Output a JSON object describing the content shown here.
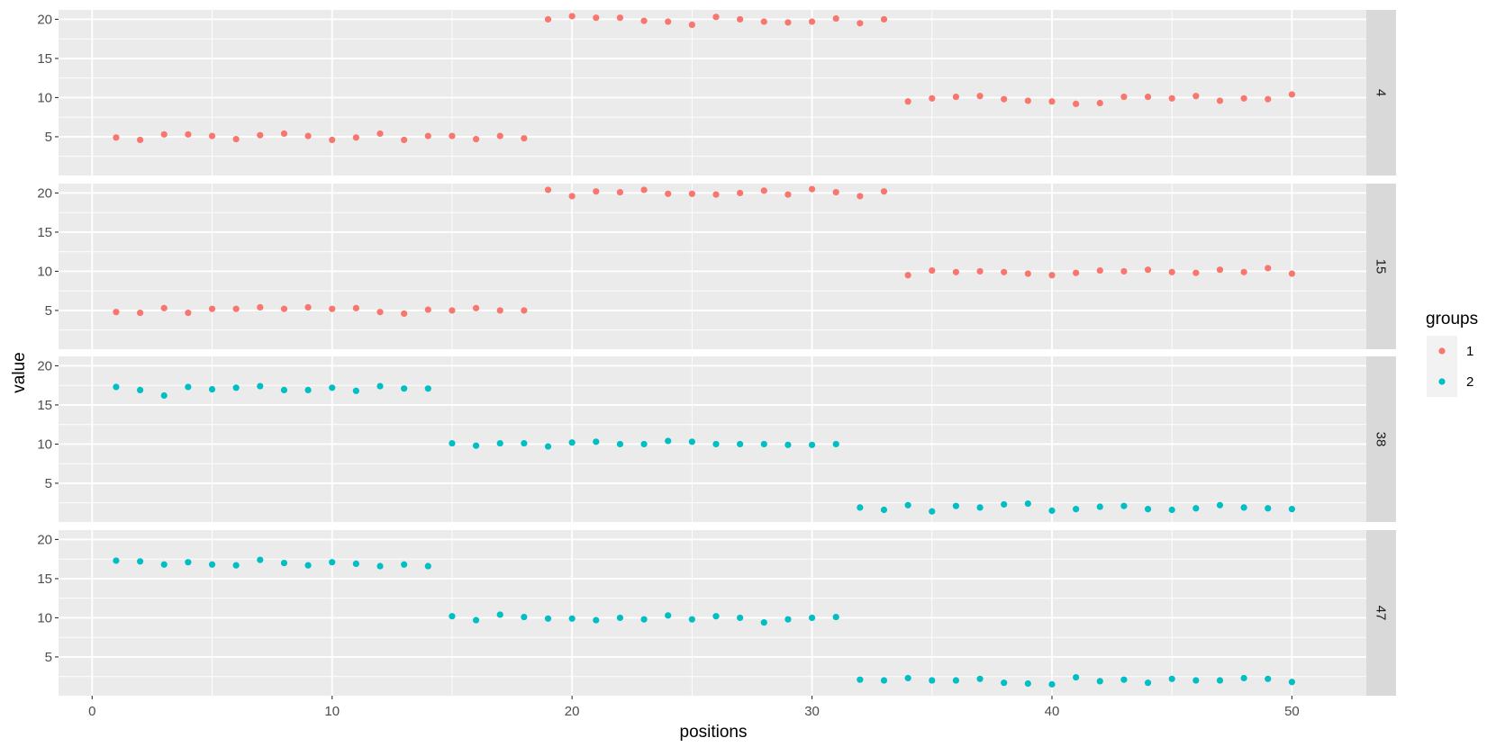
{
  "chart_data": {
    "type": "scatter",
    "xlabel": "positions",
    "ylabel": "value",
    "xlim": [
      -1.4,
      53.1
    ],
    "ylim": [
      0.05,
      21.2
    ],
    "x_ticks": [
      0,
      10,
      20,
      30,
      40,
      50
    ],
    "y_ticks": [
      5,
      10,
      15,
      20
    ],
    "grid": true,
    "legend": {
      "title": "groups",
      "position": "right",
      "entries": [
        {
          "name": "1",
          "color": "#F8766D"
        },
        {
          "name": "2",
          "color": "#00BFC4"
        }
      ]
    },
    "facets": [
      {
        "label": "4",
        "group": "1",
        "x": [
          1,
          2,
          3,
          4,
          5,
          6,
          7,
          8,
          9,
          10,
          11,
          12,
          13,
          14,
          15,
          16,
          17,
          18,
          19,
          20,
          21,
          22,
          23,
          24,
          25,
          26,
          27,
          28,
          29,
          30,
          31,
          32,
          33,
          34,
          35,
          36,
          37,
          38,
          39,
          40,
          41,
          42,
          43,
          44,
          45,
          46,
          47,
          48,
          49,
          50
        ],
        "y": [
          4.9,
          4.6,
          5.3,
          5.3,
          5.1,
          4.7,
          5.2,
          5.4,
          5.1,
          4.6,
          4.9,
          5.4,
          4.6,
          5.1,
          5.1,
          4.7,
          5.1,
          4.8,
          20.0,
          20.4,
          20.2,
          20.2,
          19.8,
          19.7,
          19.3,
          20.3,
          20.0,
          19.7,
          19.6,
          19.7,
          20.1,
          19.5,
          20.0,
          9.5,
          9.9,
          10.1,
          10.2,
          9.8,
          9.6,
          9.5,
          9.2,
          9.3,
          10.1,
          10.1,
          9.9,
          10.2,
          9.6,
          9.9,
          9.8,
          10.4
        ]
      },
      {
        "label": "15",
        "group": "1",
        "x": [
          1,
          2,
          3,
          4,
          5,
          6,
          7,
          8,
          9,
          10,
          11,
          12,
          13,
          14,
          15,
          16,
          17,
          18,
          19,
          20,
          21,
          22,
          23,
          24,
          25,
          26,
          27,
          28,
          29,
          30,
          31,
          32,
          33,
          34,
          35,
          36,
          37,
          38,
          39,
          40,
          41,
          42,
          43,
          44,
          45,
          46,
          47,
          48,
          49,
          50
        ],
        "y": [
          4.8,
          4.7,
          5.3,
          4.7,
          5.2,
          5.2,
          5.4,
          5.2,
          5.4,
          5.2,
          5.3,
          4.8,
          4.6,
          5.1,
          5.0,
          5.3,
          5.0,
          5.0,
          20.4,
          19.6,
          20.2,
          20.1,
          20.4,
          19.9,
          19.9,
          19.8,
          20.0,
          20.3,
          19.8,
          20.5,
          20.1,
          19.6,
          20.2,
          9.5,
          10.1,
          9.9,
          10.0,
          9.9,
          9.7,
          9.5,
          9.8,
          10.1,
          10.0,
          10.2,
          9.9,
          9.8,
          10.2,
          9.9,
          10.4,
          9.7
        ]
      },
      {
        "label": "38",
        "group": "2",
        "x": [
          1,
          2,
          3,
          4,
          5,
          6,
          7,
          8,
          9,
          10,
          11,
          12,
          13,
          14,
          15,
          16,
          17,
          18,
          19,
          20,
          21,
          22,
          23,
          24,
          25,
          26,
          27,
          28,
          29,
          30,
          31,
          32,
          33,
          34,
          35,
          36,
          37,
          38,
          39,
          40,
          41,
          42,
          43,
          44,
          45,
          46,
          47,
          48,
          49,
          50
        ],
        "y": [
          17.3,
          16.9,
          16.2,
          17.3,
          17.0,
          17.2,
          17.4,
          16.9,
          16.9,
          17.2,
          16.8,
          17.4,
          17.1,
          17.1,
          10.1,
          9.8,
          10.1,
          10.1,
          9.7,
          10.2,
          10.3,
          10.0,
          10.0,
          10.4,
          10.3,
          10.0,
          10.0,
          10.0,
          9.9,
          9.9,
          10.0,
          1.9,
          1.6,
          2.2,
          1.4,
          2.1,
          1.9,
          2.3,
          2.4,
          1.5,
          1.7,
          2.0,
          2.1,
          1.7,
          1.6,
          1.8,
          2.2,
          1.9,
          1.8,
          1.7
        ]
      },
      {
        "label": "47",
        "group": "2",
        "x": [
          1,
          2,
          3,
          4,
          5,
          6,
          7,
          8,
          9,
          10,
          11,
          12,
          13,
          14,
          15,
          16,
          17,
          18,
          19,
          20,
          21,
          22,
          23,
          24,
          25,
          26,
          27,
          28,
          29,
          30,
          31,
          32,
          33,
          34,
          35,
          36,
          37,
          38,
          39,
          40,
          41,
          42,
          43,
          44,
          45,
          46,
          47,
          48,
          49,
          50
        ],
        "y": [
          17.3,
          17.2,
          16.8,
          17.1,
          16.8,
          16.7,
          17.4,
          17.0,
          16.7,
          17.1,
          16.9,
          16.6,
          16.8,
          16.6,
          10.2,
          9.7,
          10.4,
          10.1,
          9.9,
          9.9,
          9.7,
          10.0,
          9.8,
          10.3,
          9.8,
          10.2,
          10.0,
          9.4,
          9.8,
          10.0,
          10.1,
          2.1,
          2.0,
          2.3,
          2.0,
          2.0,
          2.2,
          1.7,
          1.6,
          1.5,
          2.4,
          1.9,
          2.1,
          1.7,
          2.2,
          2.0,
          2.0,
          2.3,
          2.2,
          1.8
        ]
      }
    ]
  }
}
